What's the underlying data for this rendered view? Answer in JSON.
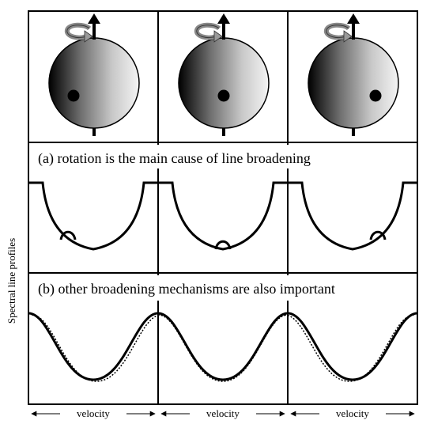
{
  "figure": {
    "caption_a": "(a) rotation is the main cause of line broadening",
    "caption_b": "(b) other broadening mechanisms are also important",
    "y_axis_label": "Spectral line profiles",
    "x_axis_label": "velocity",
    "spot_phases": [
      "left",
      "center",
      "right"
    ]
  },
  "icons": {
    "rotation": "rotation-arrow-icon",
    "axis": "rotation-axis-arrow-icon",
    "spot": "starspot-icon"
  }
}
